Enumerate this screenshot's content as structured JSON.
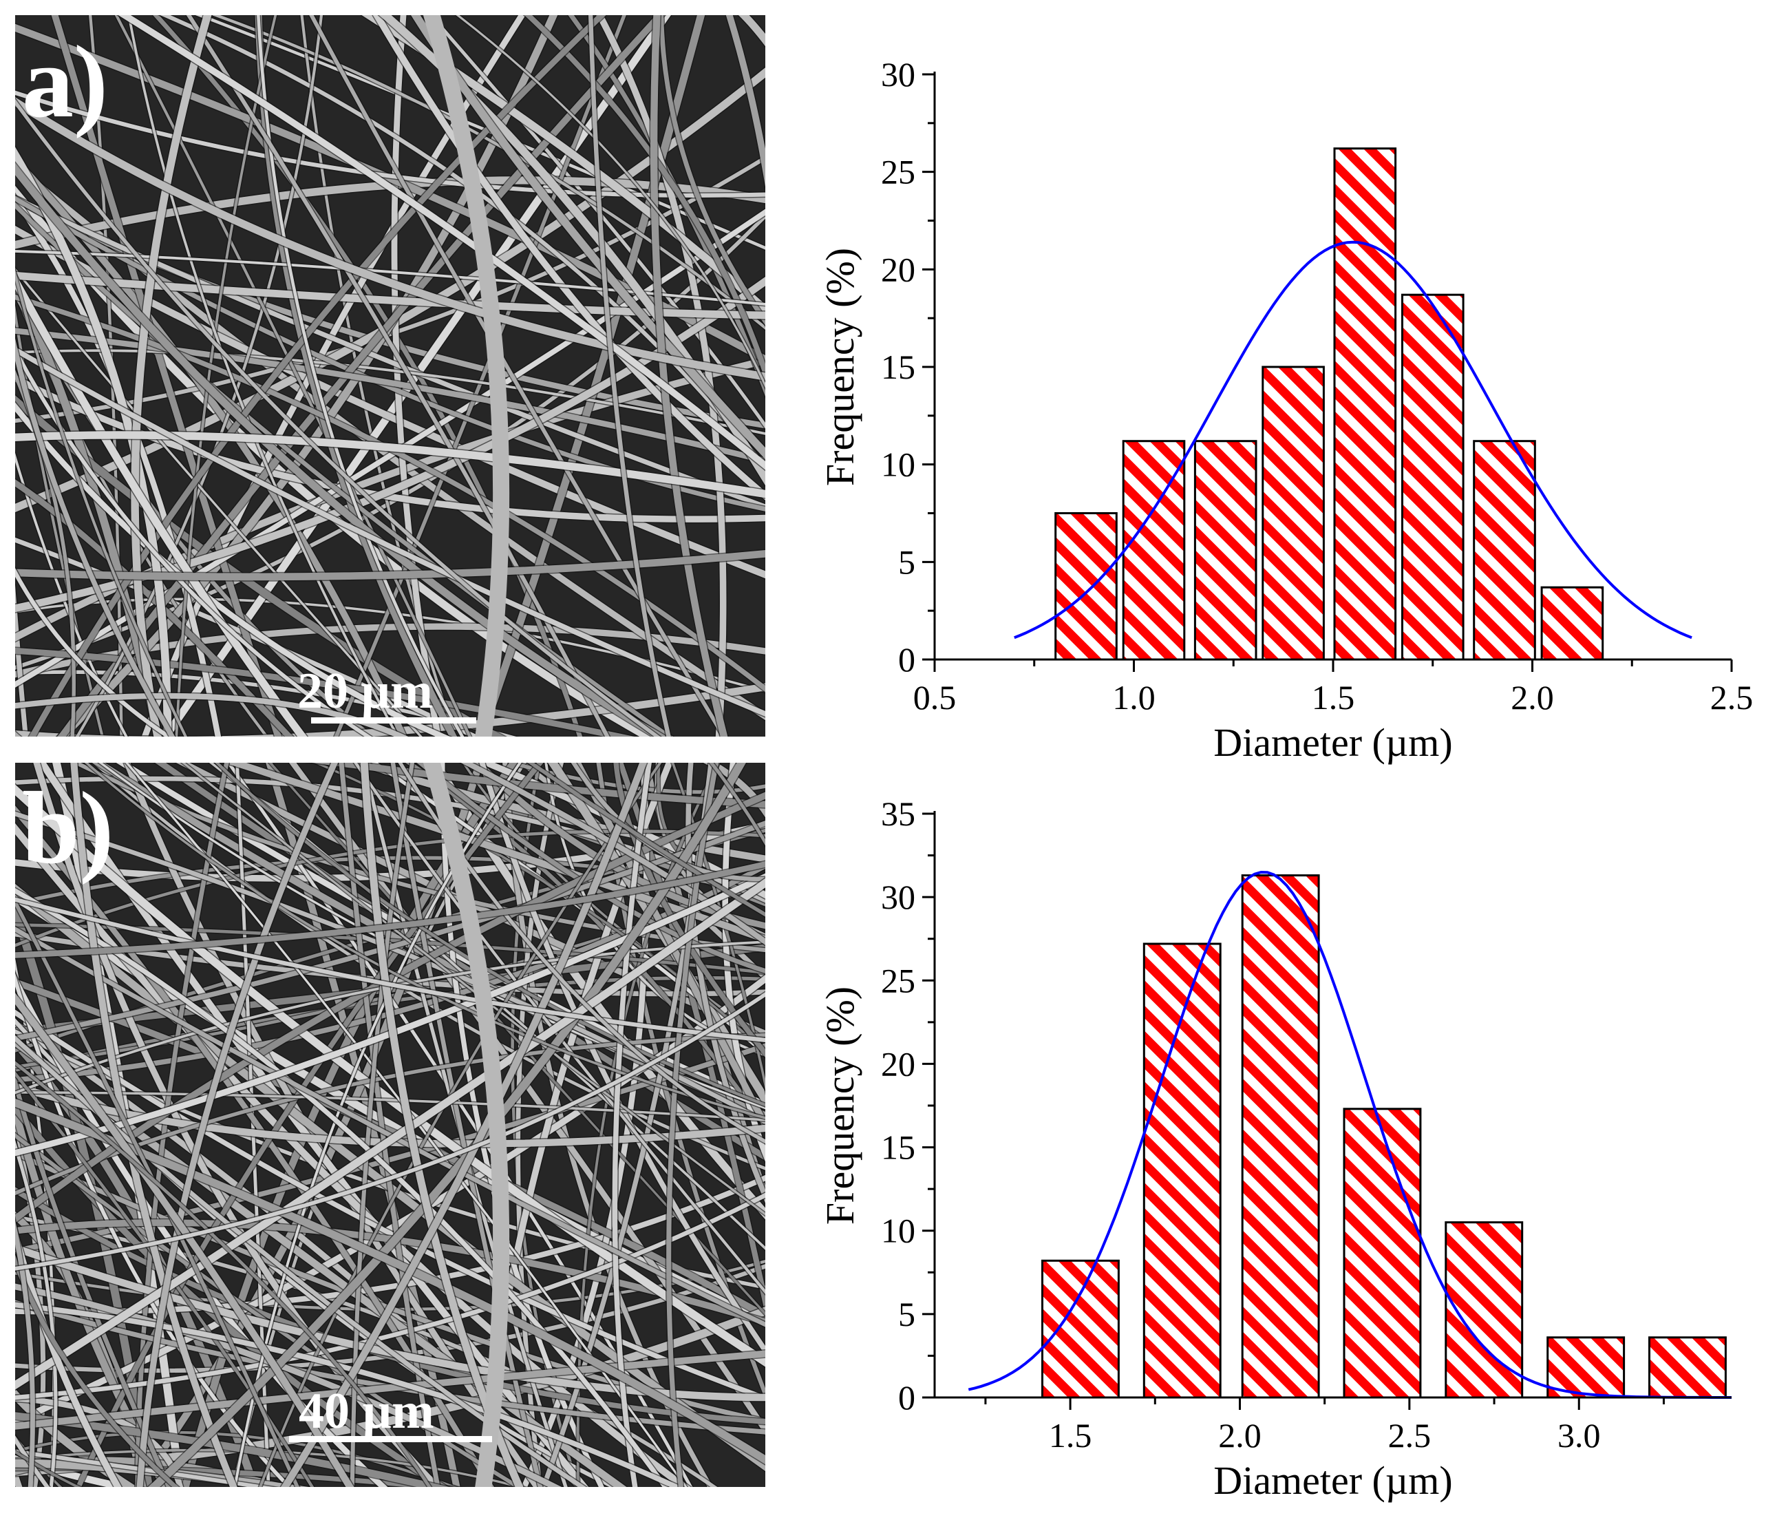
{
  "panels": {
    "a": {
      "label": "a)",
      "scale_text": "20 µm"
    },
    "b": {
      "label": "b)",
      "scale_text": "40 µm"
    }
  },
  "colors": {
    "bar_fill": "#ff0000",
    "curve": "#0000ff",
    "axis": "#000000"
  },
  "chart_data": [
    {
      "type": "bar",
      "title": "",
      "xlabel": "Diameter (µm)",
      "ylabel": "Frequency (%)",
      "xlim": [
        0.5,
        2.5
      ],
      "ylim": [
        0,
        30
      ],
      "xticks": [
        "0.5",
        "1.0",
        "1.5",
        "2.0",
        "2.5"
      ],
      "yticks": [
        "0",
        "5",
        "10",
        "15",
        "20",
        "25",
        "30"
      ],
      "bin_width": 0.17,
      "bars": [
        {
          "x": 0.88,
          "value": 7.5
        },
        {
          "x": 1.05,
          "value": 11.2
        },
        {
          "x": 1.23,
          "value": 11.2
        },
        {
          "x": 1.4,
          "value": 15.0
        },
        {
          "x": 1.58,
          "value": 26.2
        },
        {
          "x": 1.75,
          "value": 18.7
        },
        {
          "x": 1.93,
          "value": 11.2
        },
        {
          "x": 2.1,
          "value": 3.7
        }
      ],
      "fit": {
        "type": "gaussian",
        "mean": 1.55,
        "amplitude": 21.4,
        "sigma": 0.35,
        "x_range": [
          0.7,
          2.4
        ]
      }
    },
    {
      "type": "bar",
      "title": "",
      "xlabel": "Diameter (µm)",
      "ylabel": "Frequency (%)",
      "xlim": [
        1.1,
        3.45
      ],
      "ylim": [
        0,
        35
      ],
      "xticks": [
        "1.5",
        "2.0",
        "2.5",
        "3.0"
      ],
      "yticks": [
        "0",
        "5",
        "10",
        "15",
        "20",
        "25",
        "30",
        "35"
      ],
      "bin_width": 0.25,
      "bars": [
        {
          "x": 1.53,
          "value": 8.2
        },
        {
          "x": 1.83,
          "value": 27.2
        },
        {
          "x": 2.12,
          "value": 31.3
        },
        {
          "x": 2.42,
          "value": 17.3
        },
        {
          "x": 2.72,
          "value": 10.5
        },
        {
          "x": 3.02,
          "value": 3.6
        },
        {
          "x": 3.32,
          "value": 3.6
        }
      ],
      "fit": {
        "type": "gaussian",
        "mean": 2.07,
        "amplitude": 31.5,
        "sigma": 0.3,
        "x_range": [
          1.2,
          3.45
        ]
      }
    }
  ]
}
